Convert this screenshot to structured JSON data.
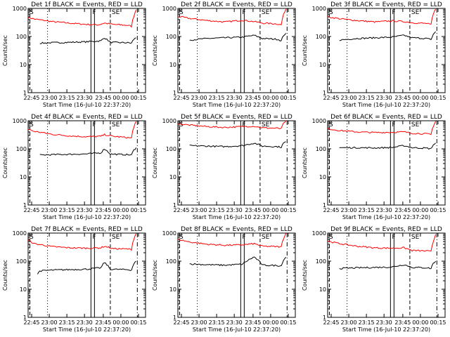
{
  "chart_data": [
    {
      "type": "line",
      "title": "Det 1f BLACK = Events, RED = LLD",
      "xlabel": "Start Time (16-Jul-10 22:37:20)",
      "ylabel": "Counts/sec",
      "xticks": [
        "22:45",
        "23:00",
        "23:15",
        "23:30",
        "23:45",
        "00:00",
        "00:15"
      ],
      "yticks": [
        "1",
        "10",
        "100",
        "1000"
      ],
      "ylim": [
        1,
        1000
      ],
      "yscale": "log",
      "markers": [
        "S",
        "F",
        "SE"
      ],
      "series": [
        {
          "name": "RED = LLD",
          "color": "#ff0000",
          "points": [
            [
              0,
              480
            ],
            [
              5,
              420
            ],
            [
              20,
              340
            ],
            [
              35,
              300
            ],
            [
              50,
              270
            ],
            [
              60,
              260
            ],
            [
              65,
              300
            ],
            [
              72,
              270
            ],
            [
              85,
              250
            ],
            [
              88,
              230
            ],
            [
              90,
              520
            ],
            [
              92,
              900
            ]
          ]
        },
        {
          "name": "BLACK = Events",
          "color": "#000000",
          "points": [
            [
              10,
              58
            ],
            [
              20,
              60
            ],
            [
              35,
              62
            ],
            [
              50,
              65
            ],
            [
              62,
              70
            ],
            [
              65,
              90
            ],
            [
              70,
              62
            ],
            [
              85,
              60
            ],
            [
              88,
              58
            ],
            [
              90,
              80
            ],
            [
              92,
              90
            ]
          ]
        }
      ]
    },
    {
      "type": "line",
      "title": "Det 2f BLACK = Events, RED = LLD",
      "xlabel": "Start Time (16-Jul-10 22:37:20)",
      "ylabel": "Counts/sec",
      "xticks": [
        "22:45",
        "23:00",
        "23:15",
        "23:30",
        "23:45",
        "00:00",
        "00:15"
      ],
      "yticks": [
        "1",
        "10",
        "100",
        "1000"
      ],
      "ylim": [
        1,
        1000
      ],
      "yscale": "log",
      "markers": [
        "S",
        "F",
        "SE"
      ],
      "series": [
        {
          "name": "RED = LLD",
          "color": "#ff0000",
          "points": [
            [
              0,
              520
            ],
            [
              10,
              440
            ],
            [
              25,
              370
            ],
            [
              40,
              330
            ],
            [
              55,
              380
            ],
            [
              65,
              340
            ],
            [
              72,
              300
            ],
            [
              85,
              280
            ],
            [
              88,
              260
            ],
            [
              90,
              600
            ],
            [
              92,
              950
            ]
          ]
        },
        {
          "name": "BLACK = Events",
          "color": "#000000",
          "points": [
            [
              10,
              75
            ],
            [
              25,
              85
            ],
            [
              40,
              90
            ],
            [
              55,
              95
            ],
            [
              65,
              110
            ],
            [
              72,
              85
            ],
            [
              85,
              80
            ],
            [
              88,
              70
            ],
            [
              90,
              110
            ],
            [
              92,
              130
            ]
          ]
        }
      ]
    },
    {
      "type": "line",
      "title": "Det 3f BLACK = Events, RED = LLD",
      "xlabel": "Start Time (16-Jul-10 22:37:20)",
      "ylabel": "Counts/sec",
      "xticks": [
        "22:45",
        "23:00",
        "23:15",
        "23:30",
        "23:45",
        "00:00",
        "00:15"
      ],
      "yticks": [
        "1",
        "10",
        "100",
        "1000"
      ],
      "ylim": [
        1,
        1000
      ],
      "yscale": "log",
      "markers": [
        "S",
        "F",
        "SE"
      ],
      "series": [
        {
          "name": "RED = LLD",
          "color": "#ff0000",
          "points": [
            [
              0,
              500
            ],
            [
              10,
              430
            ],
            [
              25,
              370
            ],
            [
              40,
              330
            ],
            [
              55,
              360
            ],
            [
              65,
              340
            ],
            [
              72,
              310
            ],
            [
              85,
              290
            ],
            [
              88,
              260
            ],
            [
              90,
              620
            ],
            [
              92,
              950
            ]
          ]
        },
        {
          "name": "BLACK = Events",
          "color": "#000000",
          "points": [
            [
              10,
              75
            ],
            [
              25,
              85
            ],
            [
              40,
              90
            ],
            [
              55,
              95
            ],
            [
              65,
              110
            ],
            [
              72,
              90
            ],
            [
              85,
              85
            ],
            [
              88,
              75
            ],
            [
              90,
              120
            ],
            [
              92,
              150
            ]
          ]
        }
      ]
    },
    {
      "type": "line",
      "title": "Det 4f BLACK = Events, RED = LLD",
      "xlabel": "Start Time (16-Jul-10 22:37:20)",
      "ylabel": "Counts/sec",
      "xticks": [
        "22:45",
        "23:00",
        "23:15",
        "23:30",
        "23:45",
        "00:00",
        "00:15"
      ],
      "yticks": [
        "1",
        "10",
        "100",
        "1000"
      ],
      "ylim": [
        1,
        1000
      ],
      "yscale": "log",
      "markers": [
        "S",
        "F",
        "SE"
      ],
      "series": [
        {
          "name": "RED = LLD",
          "color": "#ff0000",
          "points": [
            [
              0,
              500
            ],
            [
              5,
              420
            ],
            [
              20,
              330
            ],
            [
              35,
              290
            ],
            [
              50,
              270
            ],
            [
              62,
              280
            ],
            [
              65,
              320
            ],
            [
              72,
              280
            ],
            [
              85,
              250
            ],
            [
              88,
              240
            ],
            [
              90,
              600
            ],
            [
              92,
              950
            ]
          ]
        },
        {
          "name": "BLACK = Events",
          "color": "#000000",
          "points": [
            [
              10,
              60
            ],
            [
              20,
              62
            ],
            [
              35,
              64
            ],
            [
              50,
              66
            ],
            [
              62,
              72
            ],
            [
              65,
              100
            ],
            [
              70,
              65
            ],
            [
              85,
              62
            ],
            [
              88,
              60
            ],
            [
              90,
              90
            ],
            [
              92,
              110
            ]
          ]
        }
      ]
    },
    {
      "type": "line",
      "title": "Det 5f BLACK = Events, RED = LLD",
      "xlabel": "Start Time (16-Jul-10 22:37:20)",
      "ylabel": "Counts/sec",
      "xticks": [
        "22:45",
        "23:00",
        "23:15",
        "23:30",
        "23:45",
        "00:00",
        "00:15"
      ],
      "yticks": [
        "1",
        "10",
        "100",
        "1000"
      ],
      "ylim": [
        1,
        1000
      ],
      "yscale": "log",
      "markers": [
        "S",
        "F",
        "SE"
      ],
      "series": [
        {
          "name": "RED = LLD",
          "color": "#ff0000",
          "points": [
            [
              0,
              780
            ],
            [
              10,
              700
            ],
            [
              25,
              620
            ],
            [
              40,
              580
            ],
            [
              55,
              620
            ],
            [
              65,
              640
            ],
            [
              72,
              560
            ],
            [
              85,
              540
            ],
            [
              88,
              520
            ],
            [
              90,
              800
            ],
            [
              92,
              1000
            ]
          ]
        },
        {
          "name": "BLACK = Events",
          "color": "#000000",
          "points": [
            [
              10,
              130
            ],
            [
              25,
              125
            ],
            [
              40,
              120
            ],
            [
              55,
              130
            ],
            [
              65,
              160
            ],
            [
              72,
              125
            ],
            [
              85,
              120
            ],
            [
              88,
              115
            ],
            [
              90,
              160
            ],
            [
              92,
              180
            ]
          ]
        }
      ]
    },
    {
      "type": "line",
      "title": "Det 6f BLACK = Events, RED = LLD",
      "xlabel": "Start Time (16-Jul-10 22:37:20)",
      "ylabel": "Counts/sec",
      "xticks": [
        "22:45",
        "23:00",
        "23:15",
        "23:30",
        "23:45",
        "00:00",
        "00:15"
      ],
      "yticks": [
        "1",
        "10",
        "100",
        "1000"
      ],
      "ylim": [
        1,
        1000
      ],
      "yscale": "log",
      "markers": [
        "S",
        "F",
        "SE"
      ],
      "series": [
        {
          "name": "RED = LLD",
          "color": "#ff0000",
          "points": [
            [
              0,
              520
            ],
            [
              10,
              450
            ],
            [
              25,
              400
            ],
            [
              40,
              380
            ],
            [
              55,
              390
            ],
            [
              65,
              400
            ],
            [
              72,
              360
            ],
            [
              85,
              340
            ],
            [
              88,
              320
            ],
            [
              90,
              650
            ],
            [
              92,
              960
            ]
          ]
        },
        {
          "name": "BLACK = Events",
          "color": "#000000",
          "points": [
            [
              10,
              110
            ],
            [
              25,
              110
            ],
            [
              40,
              108
            ],
            [
              55,
              112
            ],
            [
              65,
              130
            ],
            [
              72,
              110
            ],
            [
              85,
              105
            ],
            [
              88,
              100
            ],
            [
              90,
              140
            ],
            [
              92,
              160
            ]
          ]
        }
      ]
    },
    {
      "type": "line",
      "title": "Det 7f BLACK = Events, RED = LLD",
      "xlabel": "Start Time (16-Jul-10 22:37:20)",
      "ylabel": "Counts/sec",
      "xticks": [
        "22:45",
        "23:00",
        "23:15",
        "23:30",
        "23:45",
        "00:00",
        "00:15"
      ],
      "yticks": [
        "1",
        "10",
        "100",
        "1000"
      ],
      "ylim": [
        1,
        1000
      ],
      "yscale": "log",
      "markers": [
        "S",
        "F",
        "SE"
      ],
      "series": [
        {
          "name": "RED = LLD",
          "color": "#ff0000",
          "points": [
            [
              0,
              560
            ],
            [
              5,
              420
            ],
            [
              20,
              330
            ],
            [
              35,
              300
            ],
            [
              50,
              290
            ],
            [
              62,
              300
            ],
            [
              65,
              340
            ],
            [
              72,
              280
            ],
            [
              85,
              270
            ],
            [
              88,
              260
            ],
            [
              90,
              620
            ],
            [
              92,
              960
            ]
          ]
        },
        {
          "name": "BLACK = Events",
          "color": "#000000",
          "points": [
            [
              8,
              35
            ],
            [
              10,
              45
            ],
            [
              20,
              48
            ],
            [
              35,
              50
            ],
            [
              50,
              52
            ],
            [
              62,
              58
            ],
            [
              65,
              90
            ],
            [
              70,
              52
            ],
            [
              85,
              50
            ],
            [
              88,
              48
            ],
            [
              90,
              80
            ],
            [
              92,
              100
            ]
          ]
        }
      ]
    },
    {
      "type": "line",
      "title": "Det 8f BLACK = Events, RED = LLD",
      "xlabel": "Start Time (16-Jul-10 22:37:20)",
      "ylabel": "Counts/sec",
      "xticks": [
        "22:45",
        "23:00",
        "23:15",
        "23:30",
        "23:45",
        "00:00",
        "00:15"
      ],
      "yticks": [
        "1",
        "10",
        "100",
        "1000"
      ],
      "ylim": [
        1,
        1000
      ],
      "yscale": "log",
      "markers": [
        "S",
        "F",
        "SE"
      ],
      "series": [
        {
          "name": "RED = LLD",
          "color": "#ff0000",
          "points": [
            [
              0,
              600
            ],
            [
              10,
              480
            ],
            [
              25,
              400
            ],
            [
              40,
              370
            ],
            [
              55,
              380
            ],
            [
              65,
              420
            ],
            [
              72,
              340
            ],
            [
              85,
              330
            ],
            [
              88,
              320
            ],
            [
              90,
              650
            ],
            [
              92,
              980
            ]
          ]
        },
        {
          "name": "BLACK = Events",
          "color": "#000000",
          "points": [
            [
              10,
              80
            ],
            [
              25,
              75
            ],
            [
              40,
              72
            ],
            [
              55,
              78
            ],
            [
              65,
              140
            ],
            [
              72,
              72
            ],
            [
              85,
              70
            ],
            [
              88,
              68
            ],
            [
              90,
              110
            ],
            [
              92,
              140
            ]
          ]
        }
      ]
    },
    {
      "type": "line",
      "title": "Det 9f BLACK = Events, RED = LLD",
      "xlabel": "Start Time (16-Jul-10 22:37:20)",
      "ylabel": "Counts/sec",
      "xticks": [
        "22:45",
        "23:00",
        "23:15",
        "23:30",
        "23:45",
        "00:00",
        "00:15"
      ],
      "yticks": [
        "1",
        "10",
        "100",
        "1000"
      ],
      "ylim": [
        1,
        1000
      ],
      "yscale": "log",
      "markers": [
        "S",
        "F",
        "SE"
      ],
      "series": [
        {
          "name": "RED = LLD",
          "color": "#ff0000",
          "points": [
            [
              0,
              520
            ],
            [
              10,
              420
            ],
            [
              25,
              340
            ],
            [
              40,
              300
            ],
            [
              55,
              290
            ],
            [
              65,
              300
            ],
            [
              72,
              240
            ],
            [
              85,
              230
            ],
            [
              88,
              220
            ],
            [
              90,
              500
            ],
            [
              92,
              900
            ]
          ]
        },
        {
          "name": "BLACK = Events",
          "color": "#000000",
          "points": [
            [
              10,
              55
            ],
            [
              25,
              58
            ],
            [
              40,
              60
            ],
            [
              55,
              62
            ],
            [
              65,
              75
            ],
            [
              72,
              60
            ],
            [
              85,
              58
            ],
            [
              88,
              55
            ],
            [
              90,
              85
            ],
            [
              92,
              100
            ]
          ]
        }
      ]
    }
  ]
}
